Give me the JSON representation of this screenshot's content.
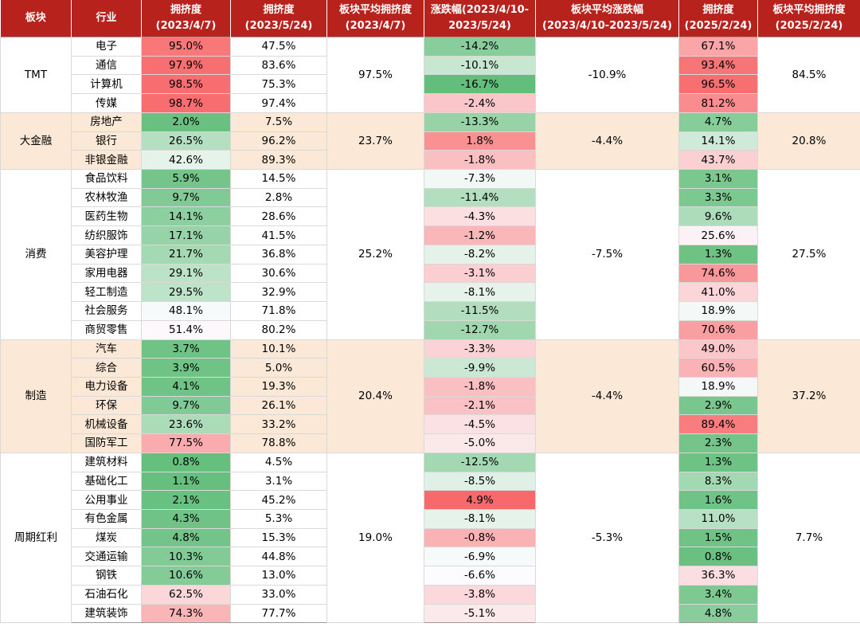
{
  "headers": [
    "板块",
    "行业",
    "拥挤度\n(2023/4/7)",
    "拥挤度\n(2023/5/24)",
    "板块平均拥挤度\n(2023/4/7)",
    "涨跌幅(2023/4/10-\n2023/5/24)",
    "板块平均涨跌幅\n(2023/4/10-2023/5/24)",
    "拥挤度\n(2025/2/24)",
    "板块平均拥挤度\n(2025/2/24)"
  ],
  "colors": {
    "header_bg": "#b8221d",
    "shaded_group_bg": "#fbe8d6",
    "plain_group_bg": "#ffffff",
    "scale_low": "#63be7b",
    "scale_mid": "#fcfcff",
    "scale_high": "#f8696b"
  },
  "chart_data": {
    "type": "table",
    "groups": [
      {
        "name": "TMT",
        "shaded": false,
        "avg_crowd_2023_04_07": "97.5%",
        "avg_change": "-10.9%",
        "avg_crowd_2025_02_24": "84.5%",
        "rows": [
          {
            "industry": "电子",
            "c1": 95.0,
            "c2": 47.5,
            "chg": -14.2,
            "c3": 67.1
          },
          {
            "industry": "通信",
            "c1": 97.9,
            "c2": 83.6,
            "chg": -10.1,
            "c3": 93.4
          },
          {
            "industry": "计算机",
            "c1": 98.5,
            "c2": 75.3,
            "chg": -16.7,
            "c3": 96.5
          },
          {
            "industry": "传媒",
            "c1": 98.7,
            "c2": 97.4,
            "chg": -2.4,
            "c3": 81.2
          }
        ]
      },
      {
        "name": "大金融",
        "shaded": true,
        "avg_crowd_2023_04_07": "23.7%",
        "avg_change": "-4.4%",
        "avg_crowd_2025_02_24": "20.8%",
        "rows": [
          {
            "industry": "房地产",
            "c1": 2.0,
            "c2": 7.5,
            "chg": -13.3,
            "c3": 4.7
          },
          {
            "industry": "银行",
            "c1": 26.5,
            "c2": 96.2,
            "chg": 1.8,
            "c3": 14.1
          },
          {
            "industry": "非银金融",
            "c1": 42.6,
            "c2": 89.3,
            "chg": -1.8,
            "c3": 43.7
          }
        ]
      },
      {
        "name": "消费",
        "shaded": false,
        "avg_crowd_2023_04_07": "25.2%",
        "avg_change": "-7.5%",
        "avg_crowd_2025_02_24": "27.5%",
        "rows": [
          {
            "industry": "食品饮料",
            "c1": 5.9,
            "c2": 14.5,
            "chg": -7.3,
            "c3": 3.1
          },
          {
            "industry": "农林牧渔",
            "c1": 9.7,
            "c2": 2.8,
            "chg": -11.4,
            "c3": 3.3
          },
          {
            "industry": "医药生物",
            "c1": 14.1,
            "c2": 28.6,
            "chg": -4.3,
            "c3": 9.6
          },
          {
            "industry": "纺织服饰",
            "c1": 17.1,
            "c2": 41.5,
            "chg": -1.2,
            "c3": 25.6
          },
          {
            "industry": "美容护理",
            "c1": 21.7,
            "c2": 36.8,
            "chg": -8.2,
            "c3": 1.3
          },
          {
            "industry": "家用电器",
            "c1": 29.1,
            "c2": 30.6,
            "chg": -3.1,
            "c3": 74.6
          },
          {
            "industry": "轻工制造",
            "c1": 29.5,
            "c2": 32.9,
            "chg": -8.1,
            "c3": 41.0
          },
          {
            "industry": "社会服务",
            "c1": 48.1,
            "c2": 71.8,
            "chg": -11.5,
            "c3": 18.9
          },
          {
            "industry": "商贸零售",
            "c1": 51.4,
            "c2": 80.2,
            "chg": -12.7,
            "c3": 70.6
          }
        ]
      },
      {
        "name": "制造",
        "shaded": true,
        "avg_crowd_2023_04_07": "20.4%",
        "avg_change": "-4.4%",
        "avg_crowd_2025_02_24": "37.2%",
        "rows": [
          {
            "industry": "汽车",
            "c1": 3.7,
            "c2": 10.1,
            "chg": -3.3,
            "c3": 49.0
          },
          {
            "industry": "综合",
            "c1": 3.9,
            "c2": 5.0,
            "chg": -9.9,
            "c3": 60.5
          },
          {
            "industry": "电力设备",
            "c1": 4.1,
            "c2": 19.3,
            "chg": -1.8,
            "c3": 18.9
          },
          {
            "industry": "环保",
            "c1": 9.7,
            "c2": 26.1,
            "chg": -2.1,
            "c3": 2.9
          },
          {
            "industry": "机械设备",
            "c1": 23.6,
            "c2": 33.2,
            "chg": -4.5,
            "c3": 89.4
          },
          {
            "industry": "国防军工",
            "c1": 77.5,
            "c2": 78.8,
            "chg": -5.0,
            "c3": 2.3
          }
        ]
      },
      {
        "name": "周期红利",
        "shaded": false,
        "avg_crowd_2023_04_07": "19.0%",
        "avg_change": "-5.3%",
        "avg_crowd_2025_02_24": "7.7%",
        "rows": [
          {
            "industry": "建筑材料",
            "c1": 0.8,
            "c2": 4.5,
            "chg": -12.5,
            "c3": 1.3
          },
          {
            "industry": "基础化工",
            "c1": 1.1,
            "c2": 3.1,
            "chg": -8.5,
            "c3": 8.3
          },
          {
            "industry": "公用事业",
            "c1": 2.1,
            "c2": 45.2,
            "chg": 4.9,
            "c3": 1.6
          },
          {
            "industry": "有色金属",
            "c1": 4.3,
            "c2": 5.3,
            "chg": -8.1,
            "c3": 11.0
          },
          {
            "industry": "煤炭",
            "c1": 4.8,
            "c2": 15.3,
            "chg": -0.8,
            "c3": 1.5
          },
          {
            "industry": "交通运输",
            "c1": 10.3,
            "c2": 44.8,
            "chg": -6.9,
            "c3": 0.8
          },
          {
            "industry": "钢铁",
            "c1": 10.6,
            "c2": 13.0,
            "chg": -6.6,
            "c3": 36.3
          },
          {
            "industry": "石油石化",
            "c1": 62.5,
            "c2": 33.0,
            "chg": -3.8,
            "c3": 3.4
          },
          {
            "industry": "建筑装饰",
            "c1": 74.3,
            "c2": 77.7,
            "chg": -5.1,
            "c3": 4.8
          }
        ]
      }
    ]
  }
}
